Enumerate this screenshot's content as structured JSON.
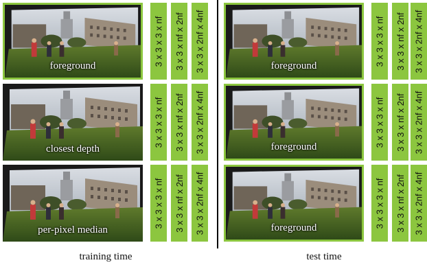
{
  "panels": {
    "left": {
      "caption": "training time",
      "rows": [
        {
          "label": "foreground",
          "highlighted": true,
          "channels": [
            "3 x 3 x 3 x nf",
            "3 x 3 x nf x 2nf",
            "3 x 3 x 2nf x 4nf"
          ]
        },
        {
          "label": "closest depth",
          "highlighted": false,
          "channels": [
            "3 x 3 x 3 x nf",
            "3 x 3 x nf x 2nf",
            "3 x 3 x 2nf x 4nf"
          ]
        },
        {
          "label": "per-pixel median",
          "highlighted": false,
          "channels": [
            "3 x 3 x 3 x nf",
            "3 x 3 x nf x 2nf",
            "3 x 3 x 2nf x 4nf"
          ]
        }
      ]
    },
    "right": {
      "caption": "test time",
      "rows": [
        {
          "label": "foreground",
          "highlighted": true,
          "channels": [
            "3 x 3 x 3 x nf",
            "3 x 3 x nf x 2nf",
            "3 x 3 x 2nf x 4nf"
          ]
        },
        {
          "label": "foreground",
          "highlighted": true,
          "channels": [
            "3 x 3 x 3 x nf",
            "3 x 3 x nf x 2nf",
            "3 x 3 x 2nf x 4nf"
          ]
        },
        {
          "label": "foreground",
          "highlighted": true,
          "channels": [
            "3 x 3 x 3 x nf",
            "3 x 3 x nf x 2nf",
            "3 x 3 x 2nf x 4nf"
          ]
        }
      ]
    }
  },
  "colors": {
    "accent_green": "#8cc63f",
    "divider": "#000000"
  }
}
